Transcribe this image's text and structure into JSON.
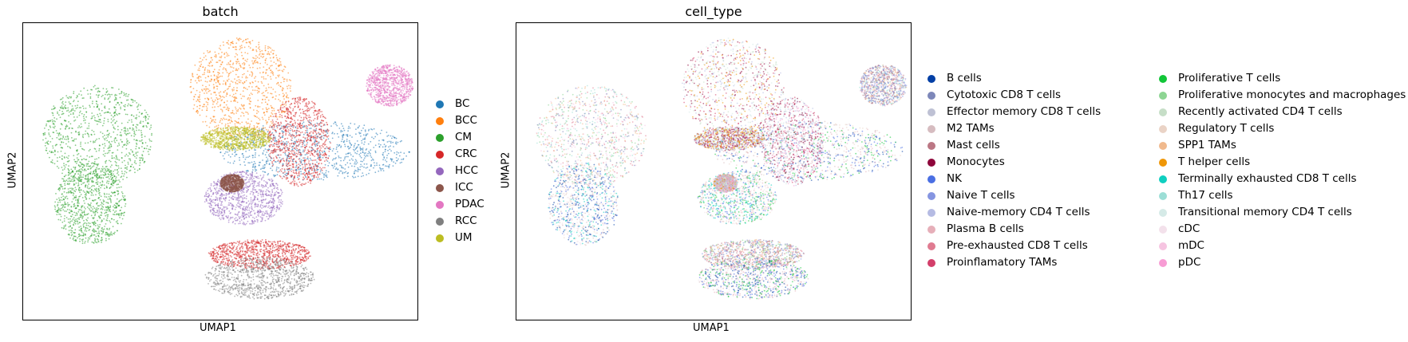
{
  "chart_data": [
    {
      "type": "scatter",
      "title": "batch",
      "xlabel": "UMAP1",
      "ylabel": "UMAP2",
      "grid": false,
      "legend": "right",
      "series": [
        {
          "name": "BC",
          "color": "#1f77b4",
          "clusters": [
            [
              0.74,
              0.43,
              0.24,
              0.1
            ]
          ]
        },
        {
          "name": "BCC",
          "color": "#ff7f0e",
          "clusters": [
            [
              0.55,
              0.22,
              0.13,
              0.17
            ]
          ]
        },
        {
          "name": "CM",
          "color": "#2ca02c",
          "clusters": [
            [
              0.19,
              0.38,
              0.14,
              0.17
            ],
            [
              0.17,
              0.61,
              0.09,
              0.14
            ]
          ]
        },
        {
          "name": "CRC",
          "color": "#d62728",
          "clusters": [
            [
              0.7,
              0.4,
              0.08,
              0.15
            ],
            [
              0.6,
              0.78,
              0.13,
              0.05
            ]
          ]
        },
        {
          "name": "HCC",
          "color": "#9467bd",
          "clusters": [
            [
              0.56,
              0.59,
              0.1,
              0.09
            ]
          ]
        },
        {
          "name": "ICC",
          "color": "#8c564b",
          "clusters": [
            [
              0.53,
              0.54,
              0.03,
              0.03
            ]
          ]
        },
        {
          "name": "PDAC",
          "color": "#e377c2",
          "clusters": [
            [
              0.93,
              0.21,
              0.06,
              0.07
            ]
          ]
        },
        {
          "name": "RCC",
          "color": "#7f7f7f",
          "clusters": [
            [
              0.6,
              0.86,
              0.14,
              0.07
            ]
          ]
        },
        {
          "name": "UM",
          "color": "#bcbd22",
          "clusters": [
            [
              0.54,
              0.39,
              0.09,
              0.04
            ]
          ]
        }
      ]
    },
    {
      "type": "scatter",
      "title": "cell_type",
      "xlabel": "UMAP1",
      "ylabel": "UMAP2",
      "grid": false,
      "legend": "right",
      "series": [
        {
          "name": "B cells",
          "color": "#023fa5"
        },
        {
          "name": "Cytotoxic CD8 T cells",
          "color": "#7d87b9"
        },
        {
          "name": "Effector memory CD8 T cells",
          "color": "#bec1d4"
        },
        {
          "name": "M2 TAMs",
          "color": "#d6bcc0"
        },
        {
          "name": "Mast cells",
          "color": "#bb7784"
        },
        {
          "name": "Monocytes",
          "color": "#8e063b"
        },
        {
          "name": "NK",
          "color": "#4a6fe3"
        },
        {
          "name": "Naive T cells",
          "color": "#8595e1"
        },
        {
          "name": "Naive-memory CD4 T cells",
          "color": "#b5bbe3"
        },
        {
          "name": "Plasma B cells",
          "color": "#e6afb9"
        },
        {
          "name": "Pre-exhausted CD8 T cells",
          "color": "#e07b91"
        },
        {
          "name": "Proinflamatory TAMs",
          "color": "#d33f6a"
        },
        {
          "name": "Proliferative T cells",
          "color": "#11c638"
        },
        {
          "name": "Proliferative monocytes and macrophages",
          "color": "#8dd593"
        },
        {
          "name": "Recently activated CD4 T cells",
          "color": "#c6dec7"
        },
        {
          "name": "Regulatory T cells",
          "color": "#ead3c6"
        },
        {
          "name": "SPP1 TAMs",
          "color": "#f0b98d"
        },
        {
          "name": "T helper cells",
          "color": "#ef9708"
        },
        {
          "name": "Terminally exhausted CD8 T cells",
          "color": "#0fcfc0"
        },
        {
          "name": "Th17 cells",
          "color": "#9cded6"
        },
        {
          "name": "Transitional memory CD4 T cells",
          "color": "#d5eae7"
        },
        {
          "name": "cDC",
          "color": "#f3e1eb"
        },
        {
          "name": "mDC",
          "color": "#f6c4e1"
        },
        {
          "name": "pDC",
          "color": "#f79cd4"
        }
      ]
    }
  ]
}
